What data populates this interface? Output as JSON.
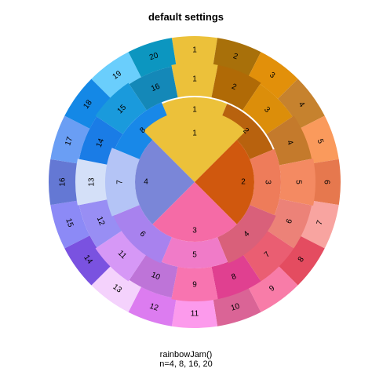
{
  "chart_data": {
    "type": "sunburst",
    "title": "default settings",
    "caption": [
      "rainbowJam()",
      "n=4, 8, 16, 20"
    ],
    "rings": [
      {
        "name": "n=4",
        "segments": [
          {
            "label": "1",
            "color": "#ECC13A"
          },
          {
            "label": "2",
            "color": "#D0580E"
          },
          {
            "label": "3",
            "color": "#F56BA6"
          },
          {
            "label": "4",
            "color": "#7A86D8"
          }
        ]
      },
      {
        "name": "n=8",
        "segments": [
          {
            "label": "1",
            "color": "#ECC13A"
          },
          {
            "label": "2",
            "color": "#B8620E"
          },
          {
            "label": "3",
            "color": "#EE7C5A"
          },
          {
            "label": "4",
            "color": "#D9607A"
          },
          {
            "label": "5",
            "color": "#F07BC8"
          },
          {
            "label": "6",
            "color": "#A882EE"
          },
          {
            "label": "7",
            "color": "#B4C4F6"
          },
          {
            "label": "8",
            "color": "#1888E8"
          }
        ]
      },
      {
        "name": "n=16",
        "segments": [
          {
            "label": "1",
            "color": "#ECC13A"
          },
          {
            "label": "2",
            "color": "#B06A06"
          },
          {
            "label": "3",
            "color": "#DC8E0A"
          },
          {
            "label": "4",
            "color": "#C47A2C"
          },
          {
            "label": "5",
            "color": "#F48A62"
          },
          {
            "label": "6",
            "color": "#EC8278"
          },
          {
            "label": "7",
            "color": "#EA5E72"
          },
          {
            "label": "8",
            "color": "#E04090"
          },
          {
            "label": "9",
            "color": "#F874B0"
          },
          {
            "label": "10",
            "color": "#BE74D8"
          },
          {
            "label": "11",
            "color": "#D698F6"
          },
          {
            "label": "12",
            "color": "#988EF4"
          },
          {
            "label": "13",
            "color": "#D4E0F8"
          },
          {
            "label": "14",
            "color": "#1A7CE6"
          },
          {
            "label": "15",
            "color": "#1A9ADC"
          },
          {
            "label": "16",
            "color": "#1488B8"
          }
        ]
      },
      {
        "name": "n=20",
        "segments": [
          {
            "label": "1",
            "color": "#ECC13A"
          },
          {
            "label": "2",
            "color": "#A8700A"
          },
          {
            "label": "3",
            "color": "#E2900A"
          },
          {
            "label": "4",
            "color": "#C6822E"
          },
          {
            "label": "5",
            "color": "#FA9A5C"
          },
          {
            "label": "6",
            "color": "#E6784E"
          },
          {
            "label": "7",
            "color": "#F8A4A0"
          },
          {
            "label": "8",
            "color": "#E44C60"
          },
          {
            "label": "9",
            "color": "#F87CA8"
          },
          {
            "label": "10",
            "color": "#DA6496"
          },
          {
            "label": "11",
            "color": "#FC9AEC"
          },
          {
            "label": "12",
            "color": "#DC7CF0"
          },
          {
            "label": "13",
            "color": "#F4D2FC"
          },
          {
            "label": "14",
            "color": "#7A52E0"
          },
          {
            "label": "15",
            "color": "#8C8AF6"
          },
          {
            "label": "16",
            "color": "#6478D4"
          },
          {
            "label": "17",
            "color": "#6A9EF4"
          },
          {
            "label": "18",
            "color": "#1488E6"
          },
          {
            "label": "19",
            "color": "#6ACEFC"
          },
          {
            "label": "20",
            "color": "#0C96C0"
          }
        ]
      }
    ]
  }
}
